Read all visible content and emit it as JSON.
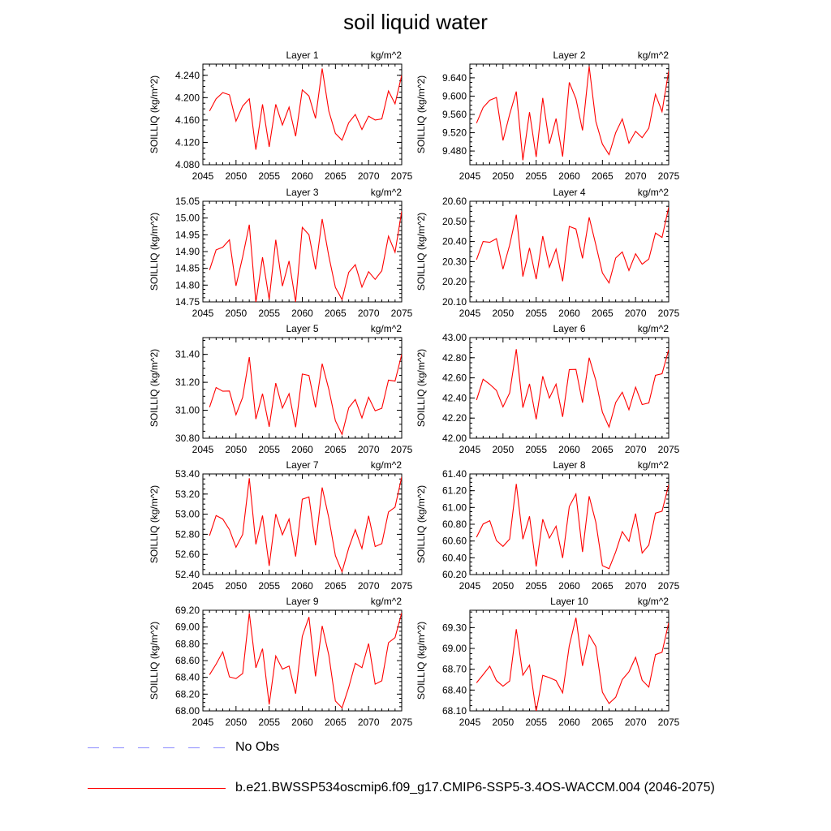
{
  "title": "soil liquid water",
  "colors": {
    "model_line": "#ff0000",
    "obs_line": "#8a8aff",
    "axis": "#000000"
  },
  "legend": [
    {
      "label": "No Obs",
      "style": "dashed",
      "color": "#8a8aff"
    },
    {
      "label": "b.e21.BWSSP534oscmip6.f09_g17.CMIP6-SSP5-3.4OS-WACCM.004 (2046-2075)",
      "style": "solid",
      "color": "#ff0000"
    }
  ],
  "chart_data": [
    {
      "type": "line",
      "title": "Layer 1",
      "units": "kg/m^2",
      "ylabel": "SOILLIQ  (kg/m^2)",
      "xlim": [
        2045,
        2075
      ],
      "ylim": [
        4.08,
        4.26
      ],
      "xticks": [
        "2045",
        "2050",
        "2055",
        "2060",
        "2065",
        "2070",
        "2075"
      ],
      "yticks": [
        "4.080",
        "4.120",
        "4.160",
        "4.200",
        "4.240"
      ],
      "x_start": 2046,
      "values": [
        4.176,
        4.198,
        4.209,
        4.205,
        4.158,
        4.185,
        4.198,
        4.107,
        4.188,
        4.112,
        4.188,
        4.151,
        4.183,
        4.131,
        4.214,
        4.203,
        4.163,
        4.252,
        4.176,
        4.136,
        4.124,
        4.155,
        4.17,
        4.143,
        4.167,
        4.16,
        4.162,
        4.212,
        4.189,
        4.24
      ]
    },
    {
      "type": "line",
      "title": "Layer 2",
      "units": "kg/m^2",
      "ylabel": "SOILLIQ  (kg/m^2)",
      "xlim": [
        2045,
        2075
      ],
      "ylim": [
        9.45,
        9.67
      ],
      "xticks": [
        "2045",
        "2050",
        "2055",
        "2060",
        "2065",
        "2070",
        "2075"
      ],
      "yticks": [
        "9.480",
        "9.520",
        "9.560",
        "9.600",
        "9.640"
      ],
      "x_start": 2046,
      "values": [
        9.541,
        9.575,
        9.591,
        9.597,
        9.503,
        9.56,
        9.61,
        9.46,
        9.565,
        9.467,
        9.596,
        9.496,
        9.551,
        9.468,
        9.63,
        9.594,
        9.525,
        9.665,
        9.545,
        9.495,
        9.472,
        9.52,
        9.55,
        9.497,
        9.523,
        9.509,
        9.53,
        9.604,
        9.566,
        9.655
      ]
    },
    {
      "type": "line",
      "title": "Layer 3",
      "units": "kg/m^2",
      "ylabel": "SOILLIQ  (kg/m^2)",
      "xlim": [
        2045,
        2075
      ],
      "ylim": [
        14.75,
        15.05
      ],
      "xticks": [
        "2045",
        "2050",
        "2055",
        "2060",
        "2065",
        "2070",
        "2075"
      ],
      "yticks": [
        "14.75",
        "14.80",
        "14.85",
        "14.90",
        "14.95",
        "15.00",
        "15.05"
      ],
      "x_start": 2046,
      "values": [
        14.845,
        14.905,
        14.913,
        14.935,
        14.798,
        14.884,
        14.98,
        14.748,
        14.883,
        14.757,
        14.935,
        14.797,
        14.872,
        14.75,
        14.972,
        14.95,
        14.847,
        14.997,
        14.886,
        14.793,
        14.757,
        14.838,
        14.861,
        14.794,
        14.84,
        14.817,
        14.843,
        14.946,
        14.898,
        15.02
      ]
    },
    {
      "type": "line",
      "title": "Layer 4",
      "units": "kg/m^2",
      "ylabel": "SOILLIQ  (kg/m^2)",
      "xlim": [
        2045,
        2075
      ],
      "ylim": [
        20.1,
        20.6
      ],
      "xticks": [
        "2045",
        "2050",
        "2055",
        "2060",
        "2065",
        "2070",
        "2075"
      ],
      "yticks": [
        "20.10",
        "20.20",
        "20.30",
        "20.40",
        "20.50",
        "20.60"
      ],
      "x_start": 2046,
      "values": [
        20.31,
        20.4,
        20.396,
        20.414,
        20.263,
        20.382,
        20.533,
        20.226,
        20.368,
        20.213,
        20.427,
        20.272,
        20.362,
        20.203,
        20.475,
        20.462,
        20.316,
        20.52,
        20.384,
        20.244,
        20.194,
        20.318,
        20.348,
        20.256,
        20.339,
        20.287,
        20.313,
        20.442,
        20.42,
        20.57
      ]
    },
    {
      "type": "line",
      "title": "Layer 5",
      "units": "kg/m^2",
      "ylabel": "SOILLIQ  (kg/m^2)",
      "xlim": [
        2045,
        2075
      ],
      "ylim": [
        30.8,
        31.52
      ],
      "xticks": [
        "2045",
        "2050",
        "2055",
        "2060",
        "2065",
        "2070",
        "2075"
      ],
      "yticks": [
        "30.80",
        "31.00",
        "31.20",
        "31.40"
      ],
      "x_start": 2046,
      "values": [
        31.022,
        31.163,
        31.136,
        31.138,
        30.968,
        31.092,
        31.38,
        30.937,
        31.119,
        30.882,
        31.194,
        31.016,
        31.119,
        30.879,
        31.259,
        31.249,
        31.02,
        31.333,
        31.15,
        30.925,
        30.827,
        31.018,
        31.077,
        30.945,
        31.093,
        30.996,
        31.014,
        31.216,
        31.209,
        31.4
      ]
    },
    {
      "type": "line",
      "title": "Layer 6",
      "units": "kg/m^2",
      "ylabel": "SOILLIQ  (kg/m^2)",
      "xlim": [
        2045,
        2075
      ],
      "ylim": [
        42.0,
        43.0
      ],
      "xticks": [
        "2045",
        "2050",
        "2055",
        "2060",
        "2065",
        "2070",
        "2075"
      ],
      "yticks": [
        "42.00",
        "42.20",
        "42.40",
        "42.60",
        "42.80",
        "43.00"
      ],
      "x_start": 2046,
      "values": [
        42.38,
        42.586,
        42.536,
        42.475,
        42.311,
        42.45,
        42.885,
        42.304,
        42.54,
        42.188,
        42.616,
        42.399,
        42.537,
        42.212,
        42.682,
        42.684,
        42.353,
        42.8,
        42.575,
        42.259,
        42.111,
        42.355,
        42.457,
        42.283,
        42.507,
        42.335,
        42.351,
        42.625,
        42.641,
        42.88
      ]
    },
    {
      "type": "line",
      "title": "Layer 7",
      "units": "kg/m^2",
      "ylabel": "SOILLIQ  (kg/m^2)",
      "xlim": [
        2045,
        2075
      ],
      "ylim": [
        52.4,
        53.4
      ],
      "xticks": [
        "2045",
        "2050",
        "2055",
        "2060",
        "2065",
        "2070",
        "2075"
      ],
      "yticks": [
        "52.40",
        "52.60",
        "52.80",
        "53.00",
        "53.20",
        "53.40"
      ],
      "x_start": 2046,
      "values": [
        52.786,
        52.986,
        52.952,
        52.847,
        52.671,
        52.798,
        53.357,
        52.701,
        52.986,
        52.486,
        53.002,
        52.795,
        52.952,
        52.579,
        53.148,
        53.171,
        52.691,
        53.265,
        52.962,
        52.588,
        52.427,
        52.664,
        52.846,
        52.659,
        52.984,
        52.678,
        52.707,
        53.022,
        53.07,
        53.37
      ]
    },
    {
      "type": "line",
      "title": "Layer 8",
      "units": "kg/m^2",
      "ylabel": "SOILLIQ  (kg/m^2)",
      "xlim": [
        2045,
        2075
      ],
      "ylim": [
        60.2,
        61.4
      ],
      "xticks": [
        "2045",
        "2050",
        "2055",
        "2060",
        "2065",
        "2070",
        "2075"
      ],
      "yticks": [
        "60.20",
        "60.40",
        "60.60",
        "60.80",
        "61.00",
        "61.20",
        "61.40"
      ],
      "x_start": 2046,
      "values": [
        60.645,
        60.803,
        60.843,
        60.606,
        60.536,
        60.623,
        61.281,
        60.622,
        60.895,
        60.297,
        60.86,
        60.635,
        60.777,
        60.397,
        61.01,
        61.161,
        60.469,
        61.134,
        60.824,
        60.306,
        60.271,
        60.47,
        60.712,
        60.597,
        60.927,
        60.456,
        60.552,
        60.933,
        60.956,
        61.27
      ]
    },
    {
      "type": "line",
      "title": "Layer 9",
      "units": "kg/m^2",
      "ylabel": "SOILLIQ  (kg/m^2)",
      "xlim": [
        2045,
        2075
      ],
      "ylim": [
        68.0,
        69.2
      ],
      "xticks": [
        "2045",
        "2050",
        "2055",
        "2060",
        "2065",
        "2070",
        "2075"
      ],
      "yticks": [
        "68.00",
        "68.20",
        "68.40",
        "68.60",
        "68.80",
        "69.00",
        "69.20"
      ],
      "x_start": 2046,
      "values": [
        68.432,
        68.557,
        68.704,
        68.405,
        68.385,
        68.445,
        69.165,
        68.514,
        68.742,
        68.076,
        68.655,
        68.498,
        68.534,
        68.205,
        68.889,
        69.12,
        68.412,
        69.013,
        68.664,
        68.117,
        68.037,
        68.28,
        68.567,
        68.515,
        68.803,
        68.318,
        68.359,
        68.813,
        68.874,
        69.17
      ]
    },
    {
      "type": "line",
      "title": "Layer 10",
      "units": "kg/m^2",
      "ylabel": "SOILLIQ  (kg/m^2)",
      "xlim": [
        2045,
        2075
      ],
      "ylim": [
        68.1,
        69.55
      ],
      "xticks": [
        "2045",
        "2050",
        "2055",
        "2060",
        "2065",
        "2070",
        "2075"
      ],
      "yticks": [
        "68.10",
        "68.40",
        "68.70",
        "69.00",
        "69.30"
      ],
      "x_start": 2046,
      "values": [
        68.505,
        68.621,
        68.744,
        68.537,
        68.456,
        68.53,
        69.277,
        68.615,
        68.76,
        68.092,
        68.612,
        68.579,
        68.536,
        68.36,
        69.039,
        69.443,
        68.749,
        69.193,
        69.028,
        68.37,
        68.206,
        68.297,
        68.551,
        68.664,
        68.872,
        68.542,
        68.444,
        68.91,
        68.946,
        69.37
      ]
    }
  ]
}
